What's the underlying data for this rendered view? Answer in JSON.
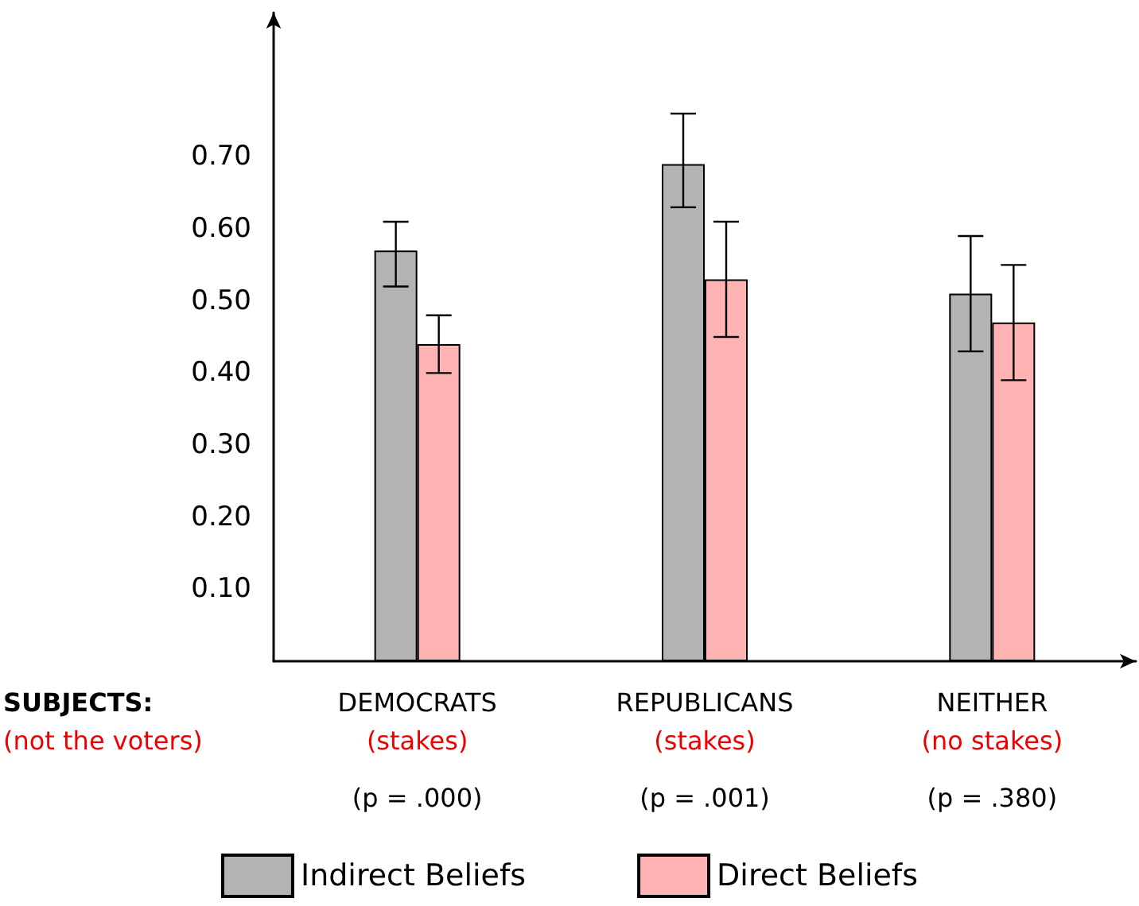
{
  "chart_data": {
    "type": "bar",
    "categories": [
      "DEMOCRATS",
      "REPUBLICANS",
      "NEITHER"
    ],
    "series": [
      {
        "name": "Indirect Beliefs",
        "color": "#b3b3b3",
        "values": [
          0.57,
          0.69,
          0.51
        ],
        "errors": [
          [
            0.52,
            0.61
          ],
          [
            0.63,
            0.76
          ],
          [
            0.43,
            0.59
          ]
        ]
      },
      {
        "name": "Direct Beliefs",
        "color": "#ffb3b3",
        "values": [
          0.44,
          0.53,
          0.47
        ],
        "errors": [
          [
            0.4,
            0.48
          ],
          [
            0.45,
            0.61
          ],
          [
            0.39,
            0.55
          ]
        ]
      }
    ],
    "ylim": [
      0,
      0.9
    ],
    "yticks": [
      {
        "value": 0.1,
        "label": "0.10"
      },
      {
        "value": 0.2,
        "label": "0.20"
      },
      {
        "value": 0.3,
        "label": "0.30"
      },
      {
        "value": 0.4,
        "label": "0.40"
      },
      {
        "value": 0.5,
        "label": "0.50"
      },
      {
        "value": 0.6,
        "label": "0.60"
      },
      {
        "value": 0.7,
        "label": "0.70"
      }
    ],
    "grid": false,
    "legend": "bottom",
    "annotations": [
      "SUBJECTS:",
      "(not the voters)",
      "(stakes)",
      "(stakes)",
      "(no stakes)",
      "(p = .000)",
      "(p = .001)",
      "(p = .380)"
    ]
  }
}
